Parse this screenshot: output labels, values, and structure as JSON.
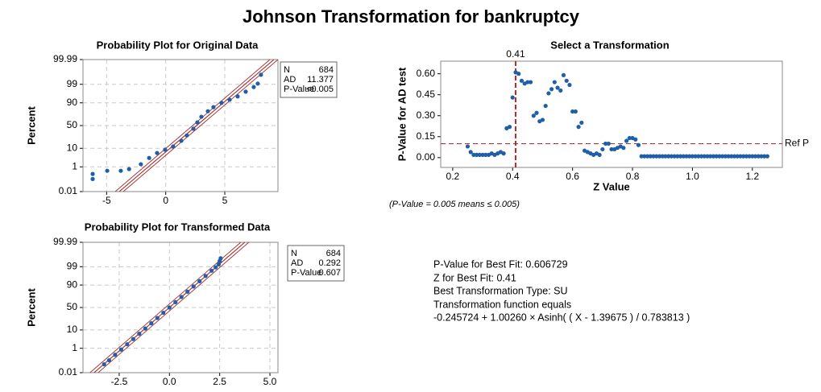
{
  "title": "Johnson Transformation for bankruptcy",
  "chart_data": [
    {
      "type": "probability",
      "title": "Probability Plot for Original Data",
      "ylabel": "Percent",
      "x": [
        -6.18,
        -6.18,
        -4.95,
        -3.8,
        -3.1,
        -2.1,
        -1.4,
        -0.73,
        -0.05,
        0.63,
        1.32,
        1.79,
        2.34,
        2.68,
        3.02,
        3.57,
        4.04,
        4.72,
        5.41,
        6.09,
        6.77,
        7.45,
        7.79,
        8.06
      ],
      "values": [
        0.32,
        0.13,
        0.54,
        0.54,
        0.71,
        1.46,
        3.4,
        6.1,
        8.7,
        11.9,
        19.5,
        29,
        43,
        57,
        69,
        79,
        85,
        90,
        92.7,
        95,
        97.2,
        98.5,
        99.1,
        99.79
      ],
      "color": "#1f5fa8",
      "fit_line": {
        "x": [
          -3.93,
          9.16
        ],
        "y": [
          0.01,
          99.99
        ],
        "color": "#a52a2a"
      },
      "xlim": [
        -7,
        9.5
      ],
      "xticks": [
        -5,
        0,
        5
      ],
      "ylim": [
        0.01,
        99.99
      ],
      "yticks": [
        0.01,
        1,
        10,
        50,
        90,
        99,
        99.99
      ],
      "grid": true,
      "stats": [
        {
          "label": "N",
          "value": 684
        },
        {
          "label": "AD",
          "value": 11.377
        },
        {
          "label": "P-Value",
          "value": "<0.005"
        }
      ]
    },
    {
      "type": "scatter",
      "title": "Select a Transformation",
      "xlabel": "Z Value",
      "ylabel": "P-Value for AD test",
      "x": [
        0.25,
        0.26,
        0.27,
        0.28,
        0.29,
        0.3,
        0.31,
        0.32,
        0.33,
        0.34,
        0.35,
        0.36,
        0.37,
        0.38,
        0.39,
        0.4,
        0.41,
        0.42,
        0.43,
        0.44,
        0.45,
        0.46,
        0.47,
        0.48,
        0.49,
        0.5,
        0.51,
        0.52,
        0.53,
        0.54,
        0.55,
        0.56,
        0.57,
        0.58,
        0.59,
        0.6,
        0.61,
        0.62,
        0.63,
        0.64,
        0.65,
        0.66,
        0.67,
        0.68,
        0.69,
        0.7,
        0.71,
        0.72,
        0.73,
        0.74,
        0.75,
        0.76,
        0.77,
        0.78,
        0.79,
        0.8,
        0.81,
        0.82,
        0.83,
        0.84,
        0.85,
        0.86,
        0.87,
        0.88,
        0.89,
        0.9,
        0.91,
        0.92,
        0.93,
        0.94,
        0.95,
        0.96,
        0.97,
        0.98,
        0.99,
        1.0,
        1.01,
        1.02,
        1.03,
        1.04,
        1.05,
        1.06,
        1.07,
        1.08,
        1.09,
        1.1,
        1.11,
        1.12,
        1.13,
        1.14,
        1.15,
        1.16,
        1.17,
        1.18,
        1.19,
        1.2,
        1.21,
        1.22,
        1.23,
        1.24,
        1.25
      ],
      "values": [
        0.08,
        0.04,
        0.02,
        0.02,
        0.02,
        0.02,
        0.02,
        0.02,
        0.03,
        0.02,
        0.03,
        0.04,
        0.03,
        0.21,
        0.22,
        0.43,
        0.61,
        0.6,
        0.55,
        0.53,
        0.54,
        0.54,
        0.3,
        0.32,
        0.26,
        0.27,
        0.37,
        0.46,
        0.49,
        0.54,
        0.5,
        0.48,
        0.59,
        0.55,
        0.52,
        0.33,
        0.33,
        0.22,
        0.25,
        0.05,
        0.04,
        0.03,
        0.02,
        0.03,
        0.02,
        0.06,
        0.1,
        0.1,
        0.06,
        0.06,
        0.07,
        0.08,
        0.07,
        0.12,
        0.14,
        0.14,
        0.13,
        0.09,
        0.01,
        0.01,
        0.01,
        0.01,
        0.01,
        0.01,
        0.01,
        0.01,
        0.01,
        0.01,
        0.01,
        0.01,
        0.01,
        0.01,
        0.01,
        0.01,
        0.01,
        0.01,
        0.01,
        0.01,
        0.01,
        0.01,
        0.01,
        0.01,
        0.01,
        0.01,
        0.01,
        0.01,
        0.01,
        0.01,
        0.01,
        0.01,
        0.01,
        0.01,
        0.01,
        0.01,
        0.01,
        0.01,
        0.01,
        0.01,
        0.01,
        0.01,
        0.01
      ],
      "color": "#1f5fa8",
      "xlim": [
        0.16,
        1.3
      ],
      "xticks": [
        0.2,
        0.4,
        0.6,
        0.8,
        {
          "value": 1,
          "label": "1.0"
        },
        1.2
      ],
      "ylim": [
        -0.07,
        0.69
      ],
      "yticks": [
        {
          "value": 0,
          "label": "0.00"
        },
        {
          "value": 0.15,
          "label": "0.15"
        },
        {
          "value": 0.3,
          "label": "0.30"
        },
        {
          "value": 0.45,
          "label": "0.45"
        },
        {
          "value": 0.6,
          "label": "0.60"
        }
      ],
      "grid": false,
      "vline": 0.41,
      "ref_line": {
        "value": 0.1,
        "label": "Ref P"
      },
      "line_color": "#c0282d"
    },
    {
      "type": "probability",
      "title": "Probability Plot for Transformed Data",
      "ylabel": "Percent",
      "x": [
        -3.25,
        -3.0,
        -2.7,
        -2.4,
        -2.1,
        -1.8,
        -1.5,
        -1.2,
        -0.9,
        -0.6,
        -0.3,
        0,
        0.3,
        0.6,
        0.9,
        1.2,
        1.5,
        1.8,
        2.1,
        2.3,
        2.45,
        2.5,
        2.55
      ],
      "values": [
        0.06,
        0.13,
        0.35,
        0.82,
        1.8,
        3.6,
        6.7,
        11.5,
        18.4,
        27.4,
        38.2,
        50,
        61.8,
        72.6,
        81.6,
        88.5,
        93.3,
        96.4,
        98.2,
        98.9,
        99.3,
        99.6,
        99.75
      ],
      "color": "#1f5fa8",
      "fit_line": {
        "x": [
          -3.75,
          3.75
        ],
        "y": [
          0.01,
          99.99
        ],
        "color": "#a52a2a"
      },
      "xlim": [
        -4.3,
        5.4
      ],
      "xticks": [
        -2.5,
        {
          "value": 0,
          "label": "0.0"
        },
        2.5,
        {
          "value": 5,
          "label": "5.0"
        }
      ],
      "ylim": [
        0.01,
        99.99
      ],
      "yticks": [
        0.01,
        1,
        10,
        50,
        90,
        99,
        99.99
      ],
      "grid": true,
      "stats": [
        {
          "label": "N",
          "value": 684
        },
        {
          "label": "AD",
          "value": 0.292
        },
        {
          "label": "P-Value",
          "value": 0.607
        }
      ]
    }
  ],
  "note": "(P-Value = 0.005 means ≤ 0.005)",
  "results": [
    "P-Value for Best Fit: 0.606729",
    "Z for Best Fit: 0.41",
    "Best Transformation Type: SU",
    "Transformation function equals",
    "-0.245724 + 1.00260 × Asinh( ( X - 1.39675 ) / 0.783813 )"
  ]
}
